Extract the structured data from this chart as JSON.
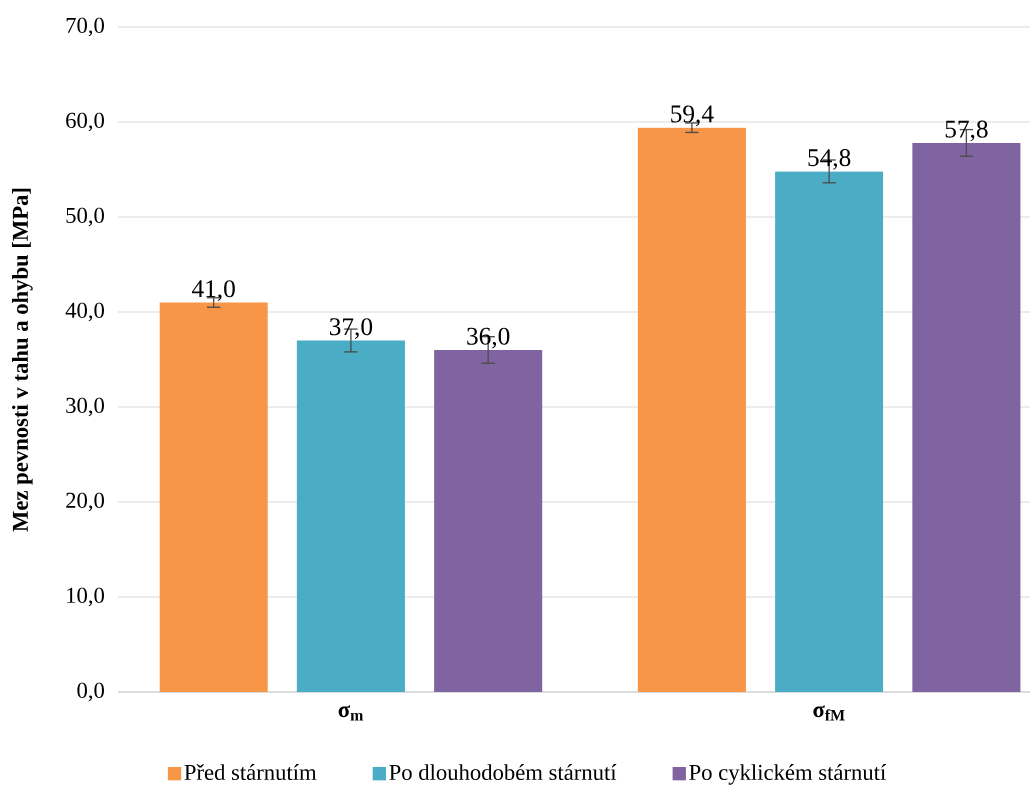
{
  "chart_data": {
    "type": "bar",
    "ylabel": "Mez pevnosti v tahu a ohybu [MPa]",
    "categories": [
      "**σ$_{m}$**",
      "**σ$_{fM}$**"
    ],
    "series": [
      {
        "name": "Před stárnutím",
        "color": "#f79646",
        "values": [
          41.0,
          59.4
        ],
        "errors": [
          0.5,
          0.5
        ],
        "value_labels": [
          "41,0",
          "59,4"
        ]
      },
      {
        "name": "Po dlouhodobém stárnutí",
        "color": "#4bacc6",
        "values": [
          37.0,
          54.8
        ],
        "errors": [
          1.2,
          1.2
        ],
        "value_labels": [
          "37,0",
          "54,8"
        ]
      },
      {
        "name": "Po cyklickém stárnutí",
        "color": "#8064a2",
        "values": [
          36.0,
          57.8
        ],
        "errors": [
          1.4,
          1.4
        ],
        "value_labels": [
          "36,0",
          "57,8"
        ]
      }
    ],
    "ylim": [
      0,
      70
    ],
    "yticks": [
      {
        "value": 0,
        "label": "0,0"
      },
      {
        "value": 10,
        "label": "10,0"
      },
      {
        "value": 20,
        "label": "20,0"
      },
      {
        "value": 30,
        "label": "30,0"
      },
      {
        "value": 40,
        "label": "40,0"
      },
      {
        "value": 50,
        "label": "50,0"
      },
      {
        "value": 60,
        "label": "60,0"
      },
      {
        "value": 70,
        "label": "70,0"
      }
    ],
    "grid": "y",
    "legend": "bottom"
  }
}
